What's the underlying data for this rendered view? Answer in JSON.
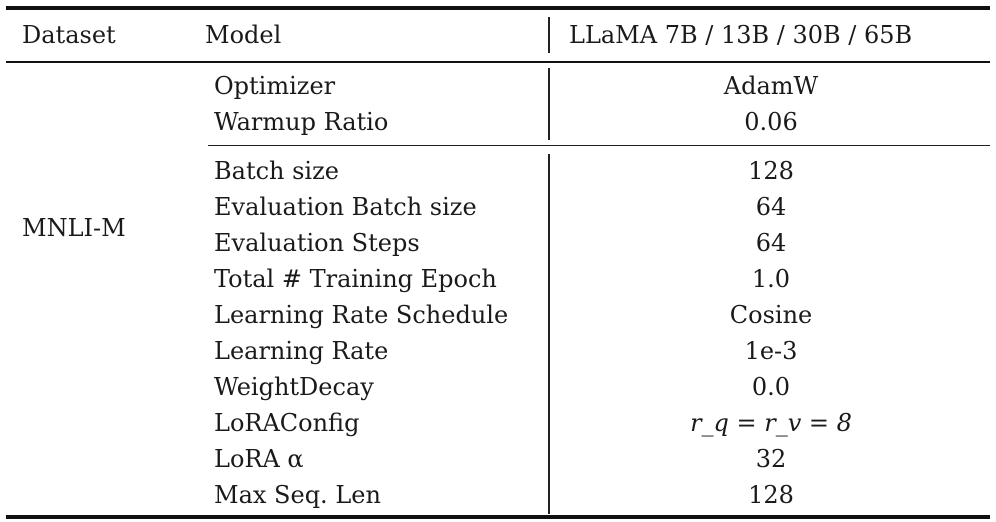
{
  "header": {
    "dataset_label": "Dataset",
    "model_label": "Model",
    "models": "LLaMA 7B / 13B / 30B / 65B"
  },
  "dataset": "MNLI-M",
  "group1": [
    {
      "param": "Optimizer",
      "value": "AdamW"
    },
    {
      "param": "Warmup Ratio",
      "value": "0.06"
    }
  ],
  "group2": [
    {
      "param": "Batch size",
      "value": "128"
    },
    {
      "param": "Evaluation Batch size",
      "value": "64"
    },
    {
      "param": "Evaluation Steps",
      "value": "64"
    },
    {
      "param": "Total # Training Epoch",
      "value": "1.0"
    },
    {
      "param": "Learning Rate Schedule",
      "value": "Cosine"
    },
    {
      "param": "Learning Rate",
      "value": "1e-3"
    },
    {
      "param": "WeightDecay",
      "value": "0.0"
    },
    {
      "param": "LoRAConfig",
      "value": "r_q = r_v = 8"
    },
    {
      "param": "LoRA α",
      "value": "32"
    },
    {
      "param": "Max Seq. Len",
      "value": "128"
    }
  ]
}
